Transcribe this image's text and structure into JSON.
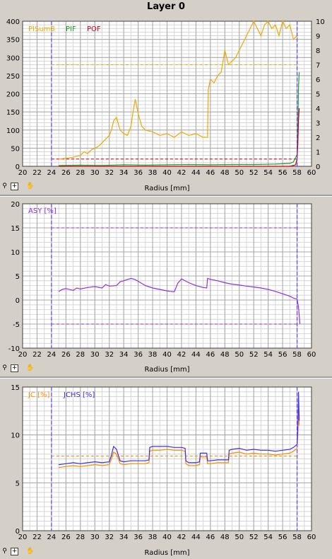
{
  "window": {
    "title": "Layer 0"
  },
  "toolbar": {
    "zoom_icon": "magnifier-icon",
    "add_icon": "plus-icon",
    "pan_icon": "hand-icon"
  },
  "colors": {
    "pisum8": "#f0a800",
    "pif": "#20a020",
    "pof": "#c00018",
    "asy": "#9030e0",
    "jc": "#ff8c00",
    "jchs": "#4030e0",
    "marker": "#6040ff"
  },
  "chart_data": [
    {
      "type": "line",
      "title": "",
      "xlabel": "Radius [mm]",
      "xlim": [
        20,
        60
      ],
      "x_ticks": [
        20,
        22,
        24,
        26,
        28,
        30,
        32,
        34,
        36,
        38,
        40,
        42,
        44,
        46,
        48,
        50,
        52,
        54,
        56,
        58,
        60
      ],
      "ylim": [
        0,
        400
      ],
      "y_ticks": [
        0,
        50,
        100,
        150,
        200,
        250,
        300,
        350,
        400
      ],
      "y2lim": [
        0,
        10
      ],
      "y2_ticks": [
        0,
        1,
        2,
        3,
        4,
        5,
        6,
        7,
        8,
        9,
        10
      ],
      "vlines": [
        24,
        58
      ],
      "hlines": [
        {
          "y": 280,
          "color": "#f0a800"
        },
        {
          "y": 20,
          "color": "#c00018"
        }
      ],
      "series": [
        {
          "name": "PISum8",
          "axis": "left",
          "color": "#f0a800",
          "x": [
            25,
            26,
            27,
            28,
            28.5,
            29,
            29.5,
            30,
            30.5,
            31,
            31.5,
            32,
            32.3,
            32.6,
            33,
            33.5,
            34,
            34.5,
            35,
            35.3,
            35.6,
            36,
            36.5,
            37,
            38,
            39,
            40,
            41,
            42,
            43,
            44,
            45,
            45.6,
            45.7,
            46,
            46.5,
            47,
            47.5,
            48,
            48.5,
            49,
            49.5,
            50,
            50.5,
            51,
            51.5,
            52,
            52.5,
            53,
            53.5,
            54,
            54.5,
            55,
            55.5,
            56,
            56.5,
            57,
            57.5,
            58
          ],
          "y": [
            20,
            22,
            25,
            30,
            40,
            35,
            45,
            50,
            55,
            65,
            75,
            85,
            100,
            125,
            135,
            100,
            90,
            85,
            110,
            150,
            185,
            145,
            110,
            100,
            95,
            85,
            90,
            80,
            95,
            85,
            90,
            80,
            80,
            210,
            240,
            230,
            250,
            260,
            320,
            280,
            290,
            300,
            320,
            340,
            360,
            380,
            400,
            380,
            360,
            390,
            400,
            380,
            390,
            360,
            400,
            380,
            390,
            350,
            360
          ]
        },
        {
          "name": "PIF",
          "axis": "right",
          "color": "#20a020",
          "x": [
            25,
            28,
            31,
            34,
            37,
            40,
            43,
            46,
            49,
            52,
            55,
            57,
            57.5,
            58,
            58.1,
            58.2,
            58.3
          ],
          "y": [
            0.05,
            0.08,
            0.06,
            0.1,
            0.08,
            0.1,
            0.12,
            0.1,
            0.12,
            0.12,
            0.15,
            0.2,
            0.3,
            0.8,
            2.5,
            5.5,
            6.5
          ]
        },
        {
          "name": "POF",
          "axis": "right",
          "color": "#c00018",
          "x": [
            25,
            30,
            40,
            50,
            57,
            57.8,
            58,
            58.1,
            58.2,
            58.3
          ],
          "y": [
            0,
            0,
            0,
            0,
            0,
            0.1,
            0.5,
            1.5,
            3.2,
            4.0
          ]
        }
      ]
    },
    {
      "type": "line",
      "title": "",
      "xlabel": "Radius [mm]",
      "xlim": [
        20,
        60
      ],
      "x_ticks": [
        20,
        22,
        24,
        26,
        28,
        30,
        32,
        34,
        36,
        38,
        40,
        42,
        44,
        46,
        48,
        50,
        52,
        54,
        56,
        58,
        60
      ],
      "ylim": [
        -10,
        20
      ],
      "y_ticks": [
        -10,
        -5,
        0,
        5,
        10,
        15,
        20
      ],
      "vlines": [
        24,
        58
      ],
      "hlines": [
        {
          "y": 15,
          "color": "#9030e0"
        },
        {
          "y": -5,
          "color": "#9030e0"
        }
      ],
      "series": [
        {
          "name": "ASY [%]",
          "color": "#9030e0",
          "x": [
            25,
            25.5,
            26,
            27,
            27.5,
            28,
            29,
            30,
            31,
            31.5,
            32,
            33,
            33.5,
            34,
            35,
            35.5,
            36,
            37,
            38,
            39,
            40,
            40.5,
            41,
            41.5,
            42,
            43,
            44,
            45,
            45.5,
            45.6,
            46,
            47,
            48,
            49,
            50,
            51,
            52,
            53,
            54,
            55,
            56,
            57,
            57.5,
            58,
            58.2,
            58.4
          ],
          "y": [
            1.8,
            2.2,
            2.4,
            2.0,
            2.5,
            2.3,
            2.6,
            2.8,
            2.5,
            3.2,
            2.9,
            3.0,
            3.8,
            4.0,
            4.5,
            4.3,
            3.9,
            3.0,
            2.5,
            2.2,
            1.9,
            1.8,
            1.7,
            3.5,
            4.4,
            3.6,
            3.0,
            2.6,
            2.5,
            4.5,
            4.3,
            4.0,
            3.6,
            3.3,
            3.1,
            2.9,
            2.7,
            2.5,
            2.2,
            1.8,
            1.3,
            0.8,
            0.4,
            0.2,
            -1.5,
            -5
          ]
        }
      ]
    },
    {
      "type": "line",
      "title": "",
      "xlabel": "Radius [mm]",
      "xlim": [
        20,
        60
      ],
      "x_ticks": [
        20,
        22,
        24,
        26,
        28,
        30,
        32,
        34,
        36,
        38,
        40,
        42,
        44,
        46,
        48,
        50,
        52,
        54,
        56,
        58,
        60
      ],
      "ylim": [
        0,
        15
      ],
      "y_ticks": [
        0,
        5,
        10,
        15
      ],
      "vlines": [
        24,
        58
      ],
      "hlines": [
        {
          "y": 7.8,
          "color": "#ff8c00"
        }
      ],
      "series": [
        {
          "name": "JC [%]",
          "color": "#ff8c00",
          "x": [
            25,
            26,
            27,
            28,
            29,
            30,
            31,
            32,
            32.3,
            32.6,
            33,
            33.5,
            34,
            35,
            36,
            37,
            37.5,
            37.6,
            38,
            39,
            40,
            41,
            42,
            42.5,
            42.6,
            43,
            44,
            44.5,
            44.6,
            45,
            45.5,
            45.6,
            46,
            47,
            48,
            48.5,
            48.6,
            49,
            50,
            51,
            52,
            53,
            54,
            55,
            56,
            57,
            57.5,
            58,
            58.1,
            58.2,
            58.3
          ],
          "y": [
            6.6,
            6.7,
            6.8,
            6.7,
            6.8,
            6.9,
            6.8,
            6.9,
            7.5,
            8.2,
            8.0,
            7.0,
            6.9,
            7.0,
            7.0,
            7.0,
            7.1,
            8.3,
            8.4,
            8.4,
            8.5,
            8.4,
            8.4,
            8.3,
            7.0,
            6.8,
            6.8,
            6.9,
            7.7,
            7.7,
            7.7,
            7.0,
            7.0,
            7.1,
            7.1,
            7.1,
            8.0,
            8.1,
            8.2,
            8.0,
            8.1,
            8.0,
            8.0,
            7.9,
            8.0,
            8.1,
            8.3,
            8.6,
            10.0,
            13.0,
            11.0
          ]
        },
        {
          "name": "JCHS [%]",
          "color": "#4030e0",
          "x": [
            25,
            26,
            27,
            28,
            29,
            30,
            31,
            32,
            32.3,
            32.6,
            33,
            33.5,
            34,
            35,
            36,
            37,
            37.5,
            37.6,
            38,
            39,
            40,
            41,
            42,
            42.5,
            42.6,
            43,
            44,
            44.5,
            44.6,
            45,
            45.5,
            45.6,
            46,
            47,
            48,
            48.5,
            48.6,
            49,
            50,
            51,
            52,
            53,
            54,
            55,
            56,
            57,
            57.5,
            58,
            58.1,
            58.2,
            58.3
          ],
          "y": [
            6.9,
            7.0,
            7.1,
            7.0,
            7.1,
            7.2,
            7.1,
            7.2,
            7.9,
            8.8,
            8.5,
            7.3,
            7.2,
            7.3,
            7.3,
            7.3,
            7.4,
            8.7,
            8.8,
            8.8,
            8.8,
            8.7,
            8.7,
            8.6,
            7.3,
            7.1,
            7.1,
            7.2,
            8.1,
            8.1,
            8.1,
            7.3,
            7.3,
            7.4,
            7.4,
            7.4,
            8.4,
            8.5,
            8.6,
            8.4,
            8.5,
            8.4,
            8.4,
            8.3,
            8.4,
            8.5,
            8.7,
            9.0,
            10.5,
            14.5,
            11.5
          ]
        }
      ]
    }
  ]
}
